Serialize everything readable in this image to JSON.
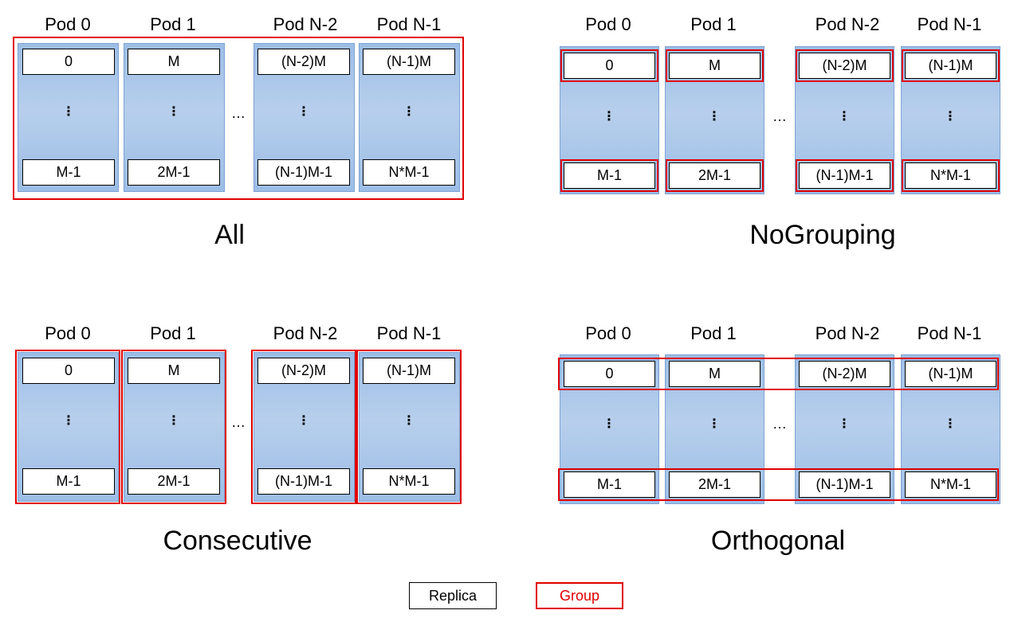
{
  "pod_headers": [
    "Pod 0",
    "Pod 1",
    "Pod N-2",
    "Pod N-1"
  ],
  "top_cells": [
    "0",
    "M",
    "(N-2)M",
    "(N-1)M"
  ],
  "bottom_cells": [
    "M-1",
    "2M-1",
    "(N-1)M-1",
    "N*M-1"
  ],
  "vertical_ellipsis": "⋮",
  "horizontal_ellipsis": "…",
  "panels": {
    "all": "All",
    "nogrouping": "NoGrouping",
    "consecutive": "Consecutive",
    "orthogonal": "Orthogonal"
  },
  "legend": {
    "replica": "Replica",
    "group": "Group"
  },
  "colors": {
    "group_border": "#e00000",
    "replica_border": "#000000",
    "pod_fill": "#a9c6ea"
  }
}
